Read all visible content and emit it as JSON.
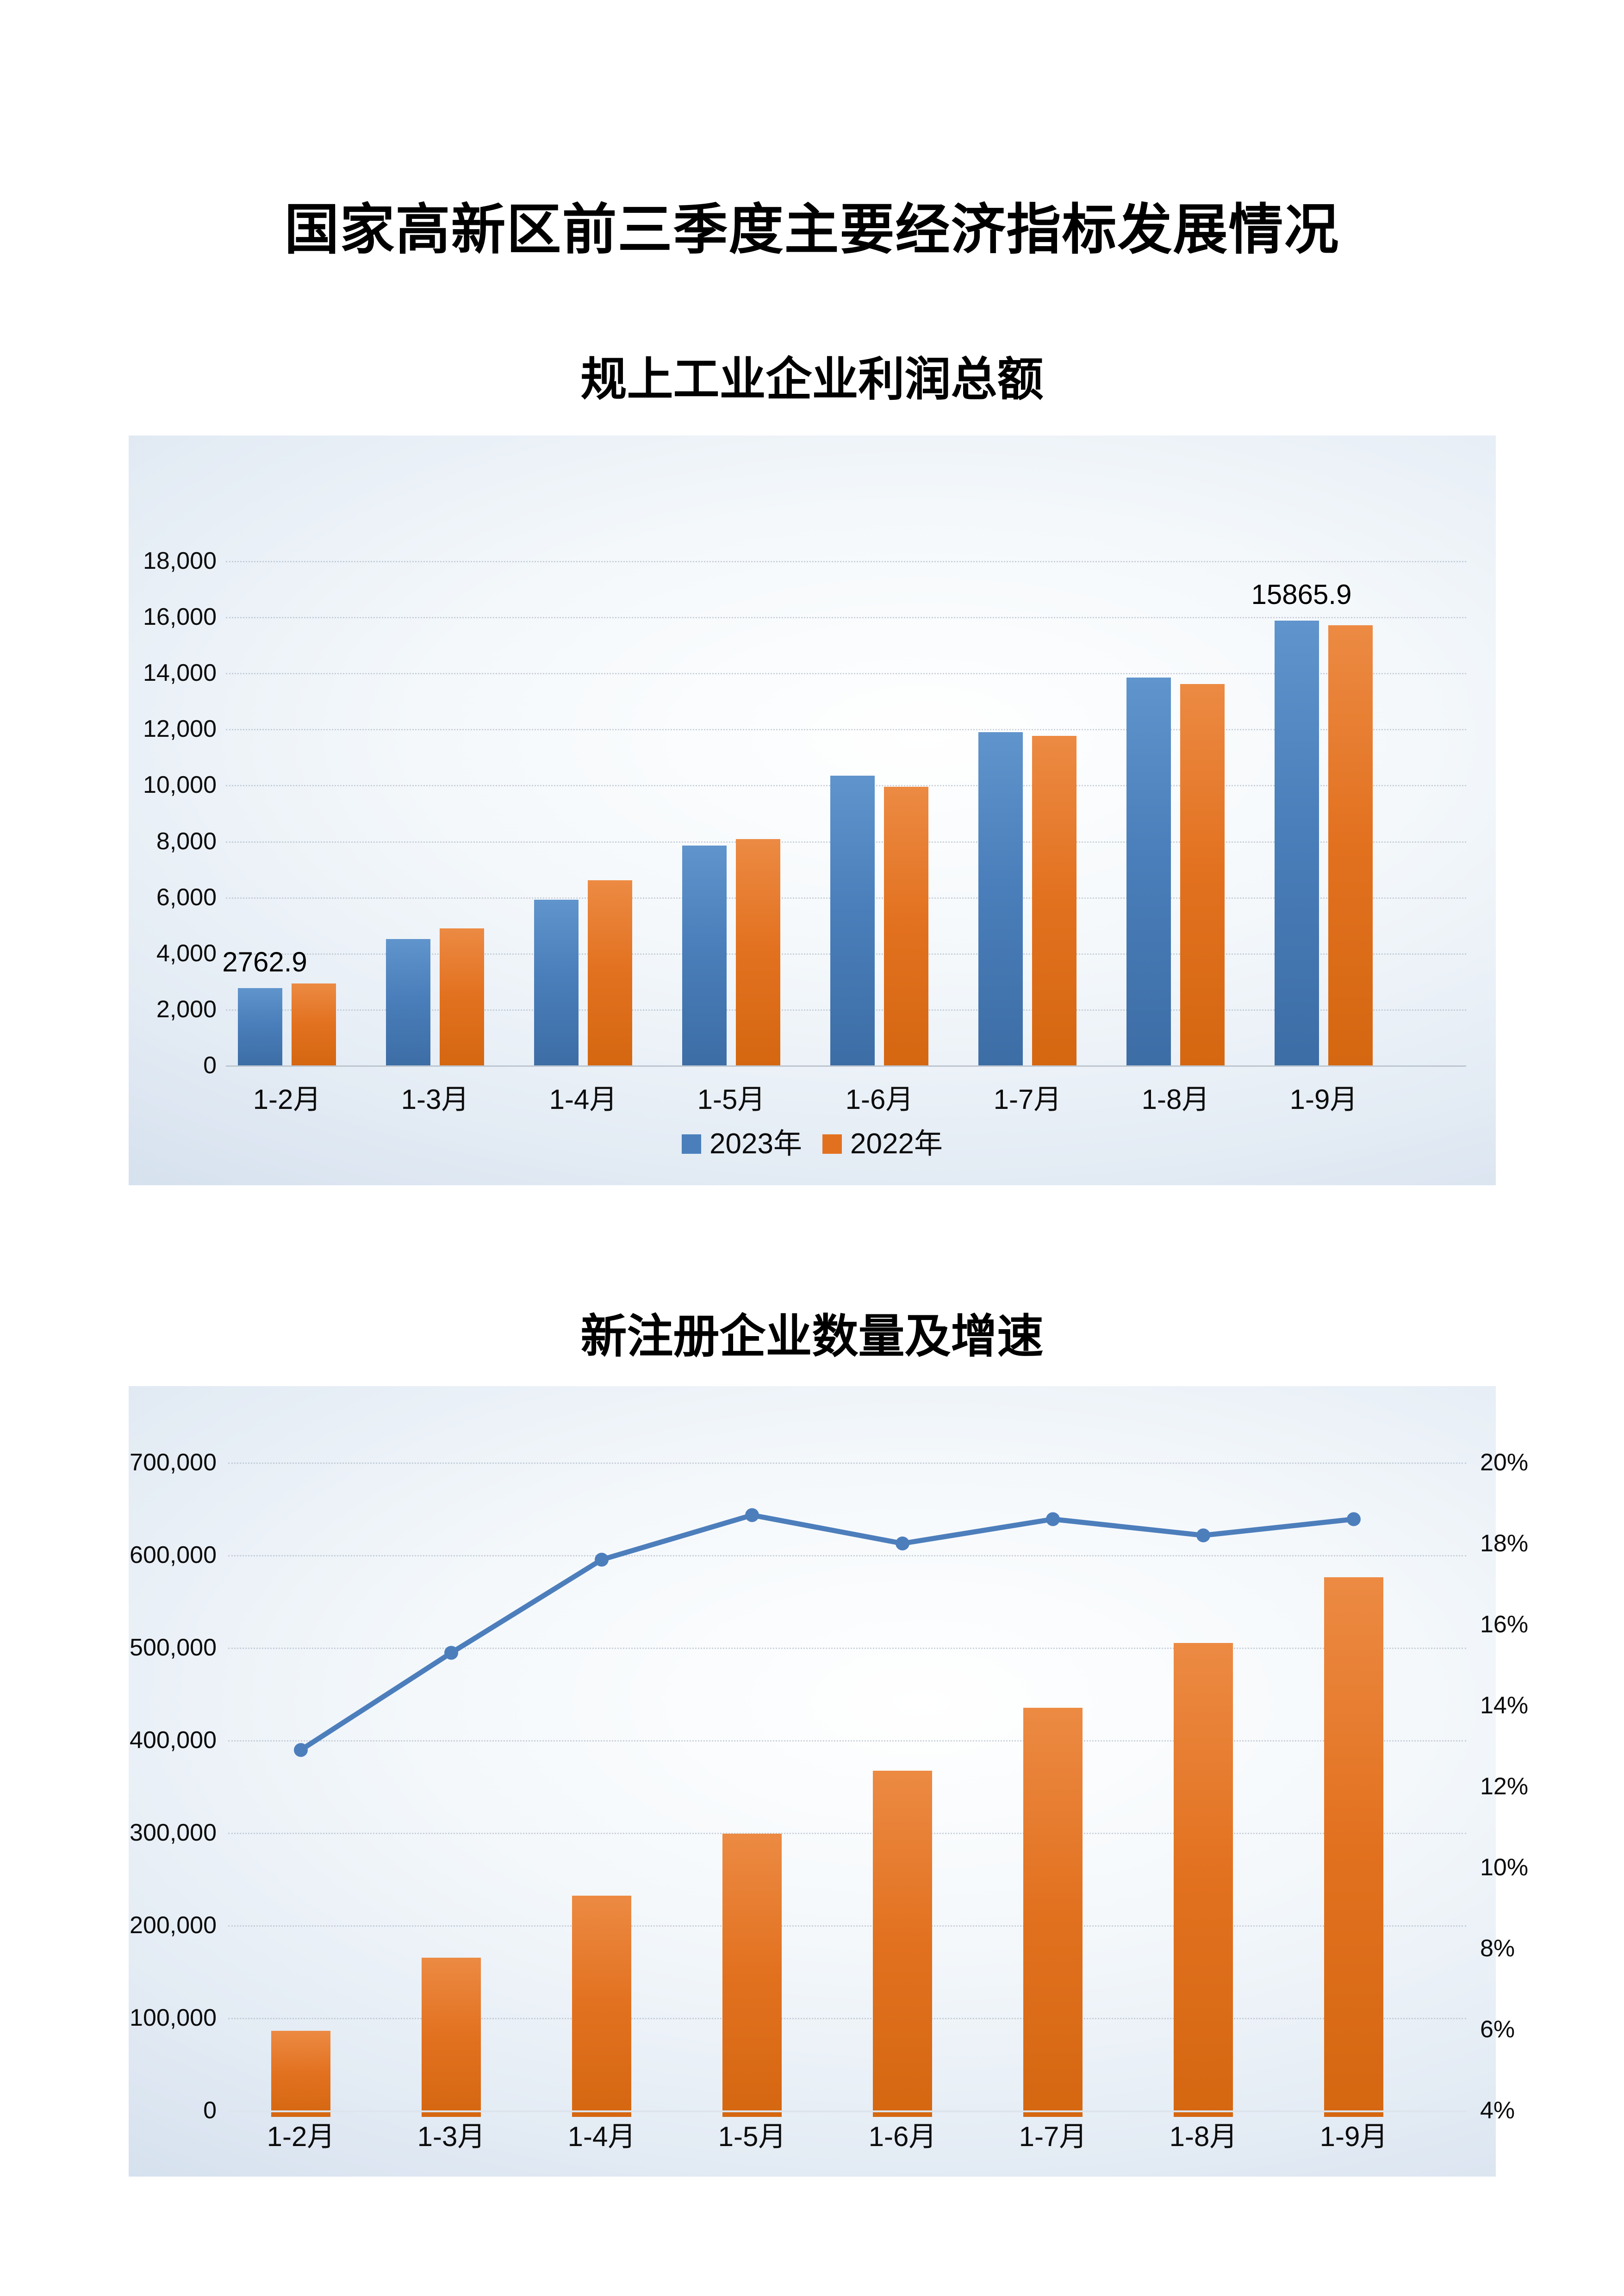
{
  "page": {
    "title": "国家高新区前三季度主要经济指标发展情况"
  },
  "chart_data": [
    {
      "type": "bar",
      "title": "规上工业企业利润总额",
      "categories": [
        "1-2月",
        "1-3月",
        "1-4月",
        "1-5月",
        "1-6月",
        "1-7月",
        "1-8月",
        "1-9月"
      ],
      "series": [
        {
          "name": "2023年",
          "color": "#4a7fbb",
          "values": [
            2762.9,
            4510,
            5910,
            7840,
            10340,
            11890,
            13840,
            15865.9
          ]
        },
        {
          "name": "2022年",
          "color": "#e2711f",
          "values": [
            2930,
            4880,
            6600,
            8080,
            9940,
            11760,
            13610,
            15710
          ]
        }
      ],
      "data_labels": [
        {
          "series_index": 0,
          "category_index": 0,
          "text": "2762.9"
        },
        {
          "series_index": 0,
          "category_index": 7,
          "text": "15865.9"
        }
      ],
      "ylim": [
        0,
        18000
      ],
      "y_step": 2000,
      "y_tick_labels": [
        "0",
        "2,000",
        "4,000",
        "6,000",
        "8,000",
        "10,000",
        "12,000",
        "14,000",
        "16,000",
        "18,000"
      ],
      "grid": true,
      "legend": {
        "position": "bottom",
        "entries": [
          "2023年",
          "2022年"
        ]
      }
    },
    {
      "type": "combo-bar-line",
      "title": "新注册企业数量及增速",
      "categories": [
        "1-2月",
        "1-3月",
        "1-4月",
        "1-5月",
        "1-6月",
        "1-7月",
        "1-8月",
        "1-9月"
      ],
      "series": [
        {
          "name": "新注册企业数量",
          "type": "bar",
          "axis": "left",
          "color": "#e2711f",
          "values": [
            86000,
            165000,
            232000,
            299000,
            367000,
            435000,
            505000,
            576000
          ]
        },
        {
          "name": "增速",
          "type": "line",
          "axis": "right",
          "color": "#4d7ebc",
          "values": [
            12.9,
            15.3,
            17.6,
            18.7,
            18.0,
            18.6,
            18.2,
            18.6
          ]
        }
      ],
      "left_axis": {
        "range": [
          0,
          700000
        ],
        "step": 100000,
        "tick_labels": [
          "0",
          "100,000",
          "200,000",
          "300,000",
          "400,000",
          "500,000",
          "600,000",
          "700,000"
        ]
      },
      "right_axis": {
        "range": [
          4,
          20
        ],
        "step": 2,
        "tick_labels": [
          "4%",
          "6%",
          "8%",
          "10%",
          "12%",
          "14%",
          "16%",
          "18%",
          "20%"
        ]
      },
      "grid": true,
      "legend_position": "none"
    }
  ]
}
